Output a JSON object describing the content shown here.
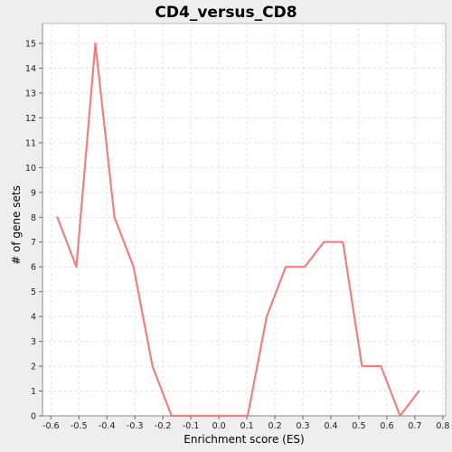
{
  "chart_data": {
    "type": "line",
    "title": "CD4_versus_CD8",
    "xlabel": "Enrichment score (ES)",
    "ylabel": "# of gene sets",
    "xlim": [
      -0.63,
      0.81
    ],
    "ylim": [
      0,
      15.8
    ],
    "x_ticks": [
      "-0.6",
      "-0.5",
      "-0.4",
      "-0.3",
      "-0.2",
      "-0.1",
      "0.0",
      "0.1",
      "0.2",
      "0.3",
      "0.4",
      "0.5",
      "0.6",
      "0.7",
      "0.8"
    ],
    "y_ticks": [
      "0",
      "1",
      "2",
      "3",
      "4",
      "5",
      "6",
      "7",
      "8",
      "9",
      "10",
      "11",
      "12",
      "13",
      "14",
      "15"
    ],
    "grid": true,
    "series": [
      {
        "color": "#f08080",
        "x": [
          -0.577,
          -0.509,
          -0.441,
          -0.373,
          -0.305,
          -0.237,
          -0.169,
          -0.101,
          -0.033,
          0.035,
          0.103,
          0.171,
          0.239,
          0.307,
          0.375,
          0.443,
          0.511,
          0.579,
          0.647,
          0.715
        ],
        "y": [
          8,
          6,
          15,
          8,
          6,
          2,
          0,
          0,
          0,
          0,
          0,
          4,
          6,
          6,
          7,
          7,
          2,
          2,
          0,
          1
        ]
      }
    ]
  }
}
